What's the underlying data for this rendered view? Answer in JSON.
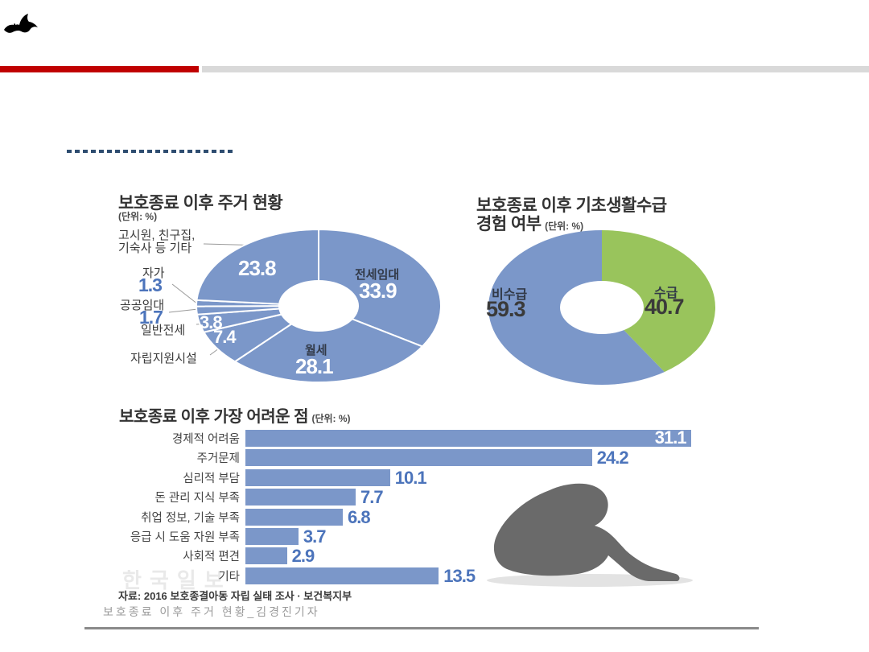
{
  "logo": {
    "name": "bat-logo"
  },
  "chart_data": [
    {
      "type": "pie",
      "donut": true,
      "title": "보호종료 이후 주거 현황",
      "unit_label": "(단위: %)",
      "color": "#7b97c9",
      "start": "12-oclock-clockwise",
      "segments": [
        {
          "label": "전세임대",
          "value": 33.9
        },
        {
          "label": "월세",
          "value": 28.1
        },
        {
          "label": "자립지원시설",
          "value": 7.4
        },
        {
          "label": "일반전세",
          "value": 3.8
        },
        {
          "label": "공공임대",
          "value": 1.7
        },
        {
          "label": "자가",
          "value": 1.3
        },
        {
          "label": "고시원, 친구집, 기숙사 등 기타",
          "value": 23.8,
          "label_lines": [
            "고시원, 친구집,",
            "기숙사 등 기타"
          ]
        }
      ]
    },
    {
      "type": "pie",
      "donut": true,
      "title": "보호종료 이후 기초생활수급 경험 여부",
      "title_lines": [
        "보호종료 이후 기초생활수급",
        "경험 여부"
      ],
      "unit_label": "(단위: %)",
      "start": "12-oclock-clockwise",
      "segments": [
        {
          "label": "수급",
          "value": 40.7,
          "color": "#99c45c"
        },
        {
          "label": "비수급",
          "value": 59.3,
          "color": "#7b97c9"
        }
      ]
    },
    {
      "type": "bar",
      "title": "보호종료 이후 가장 어려운 점",
      "unit_label": "(단위: %)",
      "bar_color": "#7b97c9",
      "orientation": "horizontal",
      "categories": [
        "경제적 어려움",
        "주거문제",
        "심리적 부담",
        "돈 관리 지식 부족",
        "취업 정보, 기술 부족",
        "응급 시 도움 자원 부족",
        "사회적 편견",
        "기타"
      ],
      "values": [
        31.1,
        24.2,
        10.1,
        7.7,
        6.8,
        3.7,
        2.9,
        13.5
      ],
      "source": "자료: 2016 보호종결아동 자립 실태 조사 · 보건복지부"
    }
  ],
  "footer": {
    "watermark": "한국일보",
    "caption": "보호종료 이후 주거 현황_김경진기자"
  }
}
